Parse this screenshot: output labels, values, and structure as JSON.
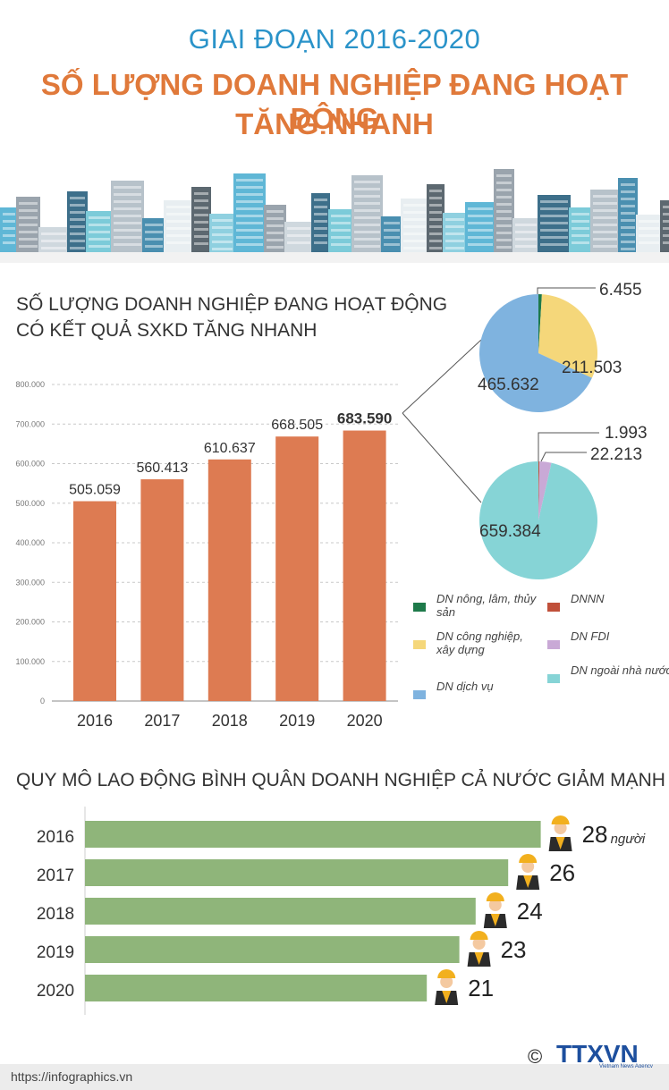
{
  "header": {
    "line1": "GIAI ĐOẠN 2016-2020",
    "line2": "SỐ LƯỢNG DOANH NGHIỆP ĐANG HOẠT ĐỘNG",
    "line3": "TĂNG NHANH"
  },
  "section1": {
    "title_line1": "SỐ LƯỢNG DOANH NGHIỆP ĐANG HOẠT ĐỘNG",
    "title_line2": "CÓ KẾT QUẢ SXKD TĂNG NHANH"
  },
  "section2": {
    "title": "QUY MÔ LAO ĐỘNG BÌNH QUÂN DOANH NGHIỆP CẢ NƯỚC GIẢM MẠNH",
    "unit": "người"
  },
  "legend": [
    {
      "label": "DN nông, lâm, thủy sản",
      "color": "#1e7a4a"
    },
    {
      "label": "DNNN",
      "color": "#c0503a"
    },
    {
      "label": "DN công nghiệp, xây dựng",
      "color": "#f5d77a"
    },
    {
      "label": "DN FDI",
      "color": "#c9a9d6"
    },
    {
      "label": "DN dịch vụ",
      "color": "#7fb3df"
    },
    {
      "label": "DN ngoài nhà nước",
      "color": "#86d4d6"
    }
  ],
  "footer": {
    "url": "https://infographics.vn",
    "copyright": "©",
    "logo": "TTXVN",
    "logo_sub": "Vietnam News Agency"
  },
  "chart_data": [
    {
      "type": "bar",
      "categories": [
        "2016",
        "2017",
        "2018",
        "2019",
        "2020"
      ],
      "values": [
        505059,
        560413,
        610637,
        668505,
        683590
      ],
      "value_labels": [
        "505.059",
        "560.413",
        "610.637",
        "668.505",
        "683.590"
      ],
      "yticks": [
        "0",
        "100.000",
        "200.000",
        "300.000",
        "400.000",
        "500.000",
        "600.000",
        "700.000",
        "800.000"
      ],
      "ylim": [
        0,
        800000
      ],
      "color": "#dd7b52",
      "grid": true
    },
    {
      "type": "pie",
      "categories": [
        "DN nông, lâm, thủy sản",
        "DN công nghiệp, xây dựng",
        "DN dịch vụ"
      ],
      "values": [
        6455,
        211503,
        465632
      ],
      "value_labels": [
        "6.455",
        "211.503",
        "465.632"
      ],
      "colors": [
        "#1e7a4a",
        "#f5d77a",
        "#7fb3df"
      ]
    },
    {
      "type": "pie",
      "categories": [
        "DNNN",
        "DN FDI",
        "DN ngoài nhà nước"
      ],
      "values": [
        1993,
        22213,
        659384
      ],
      "value_labels": [
        "1.993",
        "22.213",
        "659.384"
      ],
      "colors": [
        "#c0503a",
        "#c9a9d6",
        "#86d4d6"
      ]
    },
    {
      "type": "bar",
      "orientation": "horizontal",
      "categories": [
        "2016",
        "2017",
        "2018",
        "2019",
        "2020"
      ],
      "values": [
        28,
        26,
        24,
        23,
        21
      ],
      "color": "#8fb57a"
    }
  ]
}
